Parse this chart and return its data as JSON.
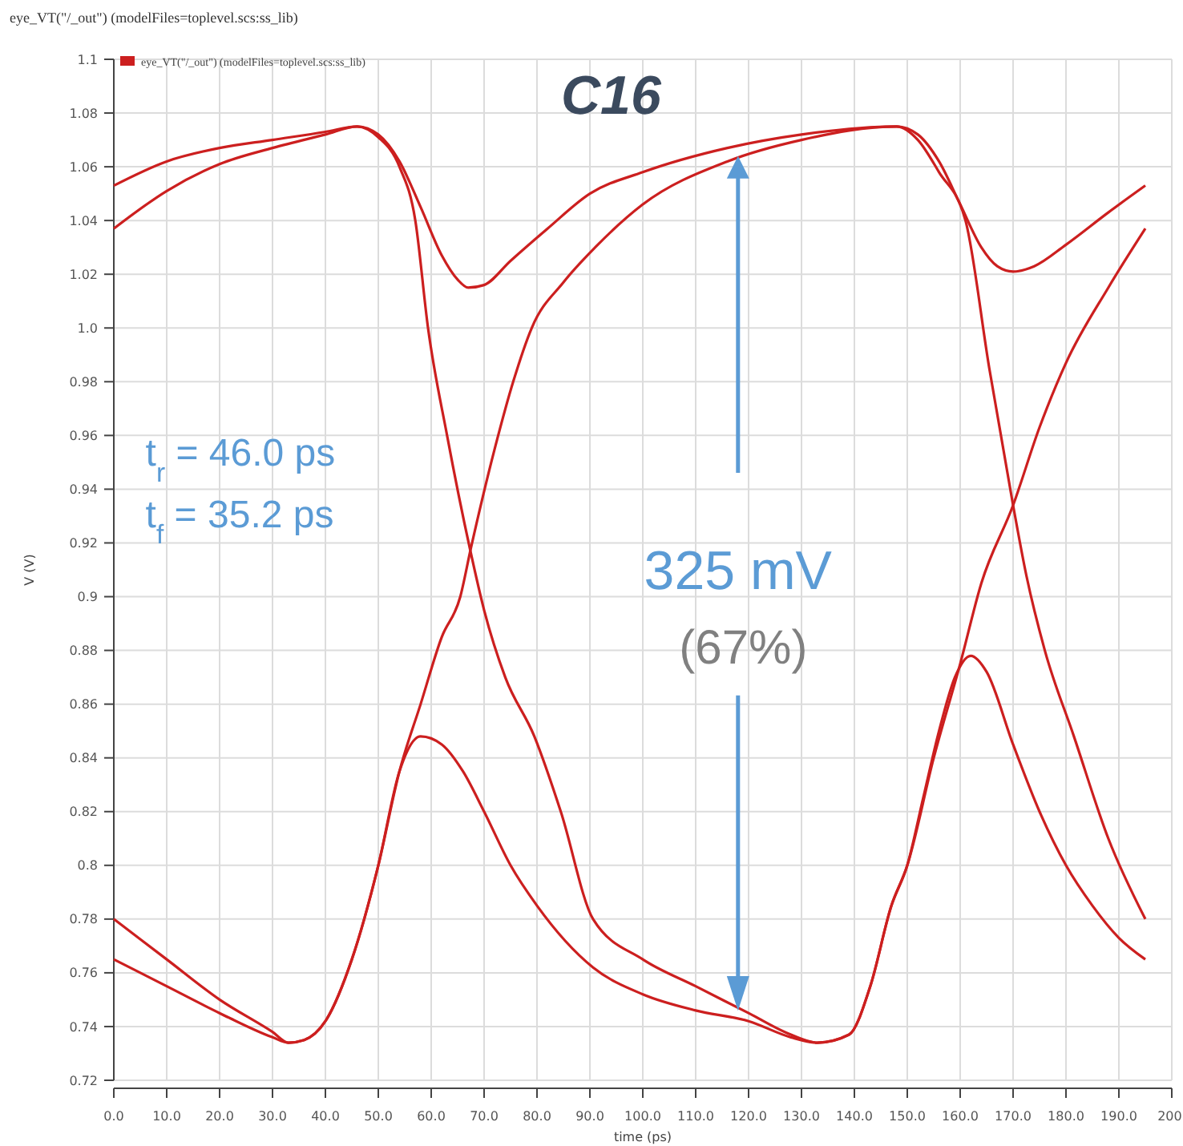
{
  "chart_data": {
    "type": "line",
    "title": "eye_VT(\"/_out\") (modelFiles=toplevel.scs:ss_lib)",
    "xlabel": "time (ps)",
    "ylabel": "V (V)",
    "annotations": [
      "C16",
      "t$_{r}$ = 46.0 ps",
      "t$_{f}$ = 35.2 ps",
      {
        "text": "325 mV",
        "x": 118,
        "y": 1.064
      },
      "(67%)"
    ],
    "xlim": [
      0,
      200
    ],
    "ylim": [
      0.72,
      1.1
    ],
    "xticks": [
      {
        "value": 0,
        "label": "0.0"
      },
      {
        "value": 10,
        "label": "10.0"
      },
      {
        "value": 20,
        "label": "20.0"
      },
      {
        "value": 30,
        "label": "30.0"
      },
      {
        "value": 40,
        "label": "40.0"
      },
      {
        "value": 50,
        "label": "50.0"
      },
      {
        "value": 60,
        "label": "60.0"
      },
      {
        "value": 70,
        "label": "70.0"
      },
      {
        "value": 80,
        "label": "80.0"
      },
      {
        "value": 90,
        "label": "90.0"
      },
      {
        "value": 100,
        "label": "100.0"
      },
      {
        "value": 110,
        "label": "110.0"
      },
      {
        "value": 120,
        "label": "120.0"
      },
      {
        "value": 130,
        "label": "130.0"
      },
      {
        "value": 140,
        "label": "140.0"
      },
      {
        "value": 150,
        "label": "150.0"
      },
      {
        "value": 160,
        "label": "160.0"
      },
      {
        "value": 170,
        "label": "170.0"
      },
      {
        "value": 180,
        "label": "180.0"
      },
      {
        "value": 190,
        "label": "190.0"
      },
      {
        "value": 200,
        "label": "200."
      }
    ],
    "yticks": [
      0.72,
      0.74,
      0.76,
      0.78,
      0.8,
      0.82,
      0.84,
      0.86,
      0.88,
      0.9,
      0.92,
      0.94,
      0.96,
      0.98,
      {
        "value": 1,
        "label": "1.0"
      },
      1.02,
      1.04,
      1.06,
      1.08,
      1.1
    ],
    "grid": true,
    "legend": "top left",
    "marker": "none",
    "line_style": "solid",
    "series": [
      {
        "name": "eye_VT(\"/_out\") (modelFiles=toplevel.scs:ss_lib)",
        "color": "#cc1f1f",
        "x": [
          0,
          10,
          20,
          30,
          40,
          46,
          50,
          54,
          58,
          62,
          65,
          67,
          70,
          75,
          82,
          90,
          100,
          116,
          130,
          148,
          152,
          156,
          160,
          164,
          167,
          170,
          174,
          180,
          188,
          195
        ],
        "values": [
          1.053,
          1.062,
          1.067,
          1.07,
          1.073,
          1.075,
          1.072,
          1.062,
          1.045,
          1.027,
          1.018,
          1.015,
          1.016,
          1.025,
          1.037,
          1.05,
          1.058,
          1.067,
          1.072,
          1.075,
          1.072,
          1.062,
          1.046,
          1.03,
          1.023,
          1.021,
          1.023,
          1.031,
          1.043,
          1.053
        ]
      },
      {
        "color": "#cc1f1f",
        "x": [
          0,
          10,
          20,
          30,
          40,
          46,
          50,
          54,
          57,
          59.4,
          63,
          67.3,
          70,
          74,
          79.5,
          84.5,
          90.6,
          100,
          110,
          120,
          128,
          133,
          139,
          143,
          147,
          150,
          153,
          156,
          159,
          162,
          165,
          170,
          175,
          180,
          185,
          190,
          195
        ],
        "values": [
          1.037,
          1.051,
          1.061,
          1.067,
          1.072,
          1.075,
          1.071,
          1.06,
          1.04,
          1.0,
          0.96,
          0.918,
          0.895,
          0.87,
          0.848,
          0.82,
          0.78,
          0.765,
          0.755,
          0.745,
          0.737,
          0.734,
          0.737,
          0.755,
          0.785,
          0.8,
          0.825,
          0.85,
          0.87,
          0.878,
          0.872,
          0.845,
          0.82,
          0.8,
          0.785,
          0.773,
          0.765
        ]
      },
      {
        "color": "#cc1f1f",
        "x": [
          0,
          10,
          20,
          30,
          33,
          36,
          40,
          45,
          50,
          54,
          58,
          62,
          66,
          70,
          75,
          80,
          90.6,
          100,
          110,
          120,
          128,
          133,
          139,
          143,
          147,
          150,
          155,
          160,
          164,
          170,
          175,
          180,
          188,
          195
        ],
        "values": [
          0.78,
          0.765,
          0.75,
          0.738,
          0.734,
          0.735,
          0.742,
          0.765,
          0.8,
          0.835,
          0.848,
          0.845,
          0.835,
          0.82,
          0.8,
          0.785,
          0.762,
          0.752,
          0.746,
          0.742,
          0.736,
          0.734,
          0.737,
          0.755,
          0.785,
          0.8,
          0.84,
          0.875,
          0.905,
          0.934,
          0.963,
          0.987,
          1.015,
          1.037
        ]
      },
      {
        "color": "#cc1f1f",
        "x": [
          0,
          10,
          20,
          30,
          33,
          36,
          40,
          45,
          50,
          54,
          58,
          62,
          65.5,
          67.5,
          72,
          75.5,
          79,
          85,
          91,
          100,
          116,
          130,
          148,
          152,
          156,
          161,
          165.5,
          170,
          172.5,
          176,
          181.5,
          188,
          195
        ],
        "values": [
          0.765,
          0.755,
          0.745,
          0.736,
          0.734,
          0.735,
          0.742,
          0.765,
          0.8,
          0.835,
          0.86,
          0.885,
          0.9,
          0.918,
          0.955,
          0.98,
          1.0,
          1.017,
          1.03,
          1.046,
          1.062,
          1.07,
          1.075,
          1.07,
          1.058,
          1.04,
          0.985,
          0.934,
          0.908,
          0.88,
          0.848,
          0.81,
          0.78
        ]
      }
    ]
  }
}
